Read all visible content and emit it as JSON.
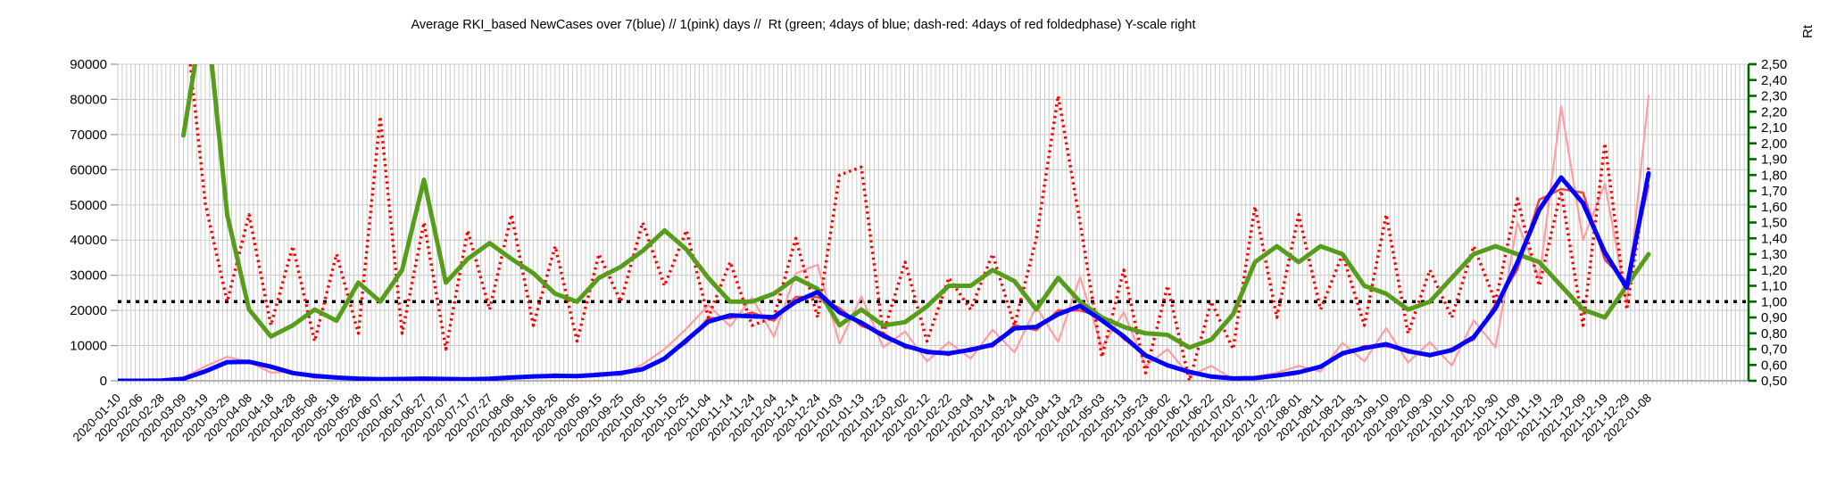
{
  "chart_data": {
    "type": "line",
    "title": "Average RKI_based NewCases over 7(blue) // 1(pink) days //  Rt (green; 4days of blue; dash-red: 4days of red foldedphase) Y-scale right",
    "left_axis": {
      "min": 0,
      "max": 90000,
      "step": 10000,
      "tick_labels": [
        "90000",
        "80000",
        "70000",
        "60000",
        "50000",
        "40000",
        "30000",
        "20000",
        "10000",
        "0"
      ]
    },
    "right_axis": {
      "title": "Rt",
      "min": 0.5,
      "max": 2.5,
      "step": 0.1,
      "tick_labels": [
        "2,50",
        "2,40",
        "2,30",
        "2,20",
        "2,10",
        "2,00",
        "1,90",
        "1,80",
        "1,70",
        "1,60",
        "1,50",
        "1,40",
        "1,30",
        "1,20",
        "1,10",
        "1,00",
        "0,90",
        "0,80",
        "0,70",
        "0,60",
        "0,50"
      ]
    },
    "categories": [
      "2020-01-10",
      "2020-02-06",
      "2020-02-28",
      "2020-03-09",
      "2020-03-19",
      "2020-03-29",
      "2020-04-08",
      "2020-04-18",
      "2020-04-28",
      "2020-05-08",
      "2020-05-18",
      "2020-05-28",
      "2020-06-07",
      "2020-06-17",
      "2020-06-27",
      "2020-07-07",
      "2020-07-17",
      "2020-07-27",
      "2020-08-06",
      "2020-08-16",
      "2020-08-26",
      "2020-09-05",
      "2020-09-15",
      "2020-09-25",
      "2020-10-05",
      "2020-10-15",
      "2020-10-25",
      "2020-11-04",
      "2020-11-14",
      "2020-11-24",
      "2020-12-04",
      "2020-12-14",
      "2020-12-24",
      "2021-01-03",
      "2021-01-13",
      "2021-01-23",
      "2021-02-02",
      "2021-02-12",
      "2021-02-22",
      "2021-03-04",
      "2021-03-14",
      "2021-03-24",
      "2021-04-03",
      "2021-04-13",
      "2021-04-23",
      "2021-05-03",
      "2021-05-13",
      "2021-05-23",
      "2021-06-02",
      "2021-06-12",
      "2021-06-22",
      "2021-07-02",
      "2021-07-12",
      "2021-07-22",
      "2021-08-01",
      "2021-08-11",
      "2021-08-21",
      "2021-08-31",
      "2021-09-10",
      "2021-09-20",
      "2021-09-30",
      "2021-10-10",
      "2021-10-20",
      "2021-10-30",
      "2021-11-09",
      "2021-11-19",
      "2021-11-29",
      "2021-12-09",
      "2021-12-19",
      "2021-12-29",
      "2022-01-08"
    ],
    "grid": {
      "vertical_lines": 373,
      "horizontal_step": 10000
    },
    "reference_line": {
      "axis": "right",
      "value": 1.0,
      "style": "dotted",
      "color": "#000000"
    },
    "colors": {
      "gridline": "#cbcbcb",
      "axis_gray": "#9e9e9e",
      "right_axis_green": "#006600"
    },
    "series": [
      {
        "name": "NewCases average 7 days (blue)",
        "axis": "left",
        "style": "solid",
        "color": "#0000ff",
        "width": 5,
        "z": 5,
        "values": [
          0,
          0,
          50,
          550,
          2700,
          5300,
          5400,
          4000,
          2200,
          1400,
          900,
          600,
          450,
          500,
          600,
          500,
          400,
          550,
          900,
          1250,
          1400,
          1350,
          1700,
          2200,
          3300,
          6300,
          11500,
          16800,
          18600,
          18300,
          18100,
          22500,
          25200,
          19500,
          16500,
          12800,
          10000,
          8200,
          7800,
          8800,
          10300,
          14900,
          15300,
          18900,
          21300,
          17200,
          12600,
          7200,
          4400,
          2500,
          1200,
          650,
          750,
          1500,
          2400,
          4000,
          7800,
          9300,
          10400,
          8400,
          7300,
          8700,
          12400,
          20600,
          33600,
          48600,
          57800,
          50500,
          36500,
          26500,
          59000
        ]
      },
      {
        "name": "NewCases 1 day (pink)",
        "axis": "left",
        "style": "solid",
        "color": "#ff9da2",
        "width": 2.2,
        "z": 1,
        "values": [
          0,
          0,
          80,
          900,
          4100,
          6800,
          5400,
          2300,
          2700,
          700,
          1200,
          350,
          250,
          750,
          950,
          250,
          600,
          950,
          1450,
          800,
          2000,
          900,
          2300,
          1500,
          4700,
          9000,
          14800,
          21500,
          15500,
          23700,
          12500,
          30500,
          33000,
          10500,
          24000,
          9500,
          14000,
          5500,
          11000,
          6300,
          14500,
          8100,
          21000,
          11000,
          29500,
          9500,
          19500,
          4200,
          9000,
          1400,
          4200,
          450,
          1200,
          2300,
          4200,
          2600,
          10800,
          5500,
          15000,
          5200,
          11000,
          4300,
          17200,
          9500,
          45000,
          29000,
          78000,
          40000,
          56000,
          22000,
          81000
        ]
      },
      {
        "name": "NewCases red foldedphase",
        "axis": "left",
        "style": "solid",
        "color": "#ee4448",
        "width": 2.6,
        "z": 2,
        "values": [
          0,
          0,
          45,
          500,
          2900,
          5000,
          5600,
          3700,
          2000,
          1500,
          800,
          650,
          400,
          550,
          550,
          550,
          350,
          600,
          850,
          1350,
          1300,
          1450,
          1600,
          2350,
          3100,
          6700,
          10800,
          17800,
          17800,
          19400,
          17100,
          23800,
          23800,
          20700,
          15600,
          13600,
          9400,
          8700,
          7300,
          9300,
          9700,
          15800,
          14400,
          20000,
          20000,
          18200,
          11900,
          7600,
          4100,
          2650,
          1100,
          700,
          700,
          1600,
          2250,
          4250,
          7300,
          9850,
          9800,
          8900,
          6900,
          9200,
          11700,
          21800,
          31600,
          51500,
          54500,
          53500,
          34400,
          28100,
          55500
        ]
      },
      {
        "name": "Rt (green; 4days of blue)",
        "axis": "right",
        "style": "solid",
        "color": "#579d1c",
        "width": 5,
        "z": 4,
        "values": [
          null,
          null,
          null,
          2.05,
          2.9,
          1.55,
          0.95,
          0.78,
          0.85,
          0.95,
          0.88,
          1.12,
          1.0,
          1.2,
          1.77,
          1.12,
          1.27,
          1.37,
          1.27,
          1.18,
          1.05,
          1.0,
          1.15,
          1.22,
          1.32,
          1.45,
          1.33,
          1.15,
          1.0,
          1.0,
          1.05,
          1.15,
          1.08,
          0.85,
          0.95,
          0.85,
          0.87,
          0.97,
          1.1,
          1.1,
          1.2,
          1.13,
          0.95,
          1.15,
          1.0,
          0.9,
          0.84,
          0.8,
          0.79,
          0.71,
          0.76,
          0.92,
          1.25,
          1.35,
          1.25,
          1.35,
          1.3,
          1.1,
          1.05,
          0.95,
          1.0,
          1.15,
          1.3,
          1.35,
          1.3,
          1.25,
          1.1,
          0.95,
          0.9,
          1.1,
          1.3
        ]
      },
      {
        "name": "Rt (dash-red; 4days of red foldedphase)",
        "axis": "right",
        "style": "dashed",
        "color": "#ff0000",
        "width": 3.4,
        "z": 3,
        "values": [
          null,
          null,
          null,
          2.9,
          1.62,
          1.0,
          1.55,
          0.85,
          1.35,
          0.75,
          1.3,
          0.8,
          2.17,
          0.8,
          1.5,
          0.7,
          1.45,
          0.95,
          1.55,
          0.85,
          1.35,
          0.75,
          1.3,
          1.0,
          1.5,
          1.1,
          1.45,
          0.9,
          1.25,
          0.85,
          0.9,
          1.4,
          0.9,
          1.8,
          1.85,
          0.8,
          1.25,
          0.75,
          1.15,
          0.95,
          1.3,
          0.85,
          1.4,
          2.3,
          1.5,
          0.65,
          1.2,
          0.55,
          1.1,
          0.5,
          1.0,
          0.7,
          1.6,
          0.9,
          1.55,
          0.95,
          1.3,
          0.85,
          1.55,
          0.8,
          1.2,
          0.9,
          1.35,
          1.0,
          1.65,
          1.1,
          1.7,
          0.85,
          2.0,
          0.95,
          1.85
        ]
      }
    ]
  }
}
